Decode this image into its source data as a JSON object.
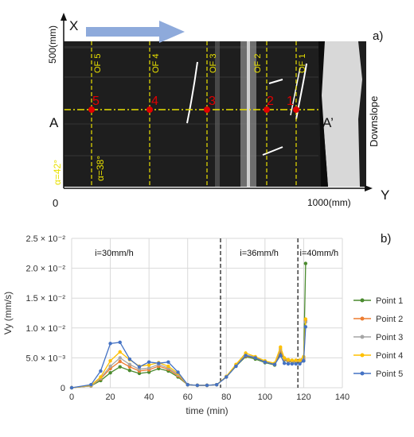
{
  "panel_a": {
    "label": "a)",
    "x_axis_label": "X",
    "y_axis_label": "Y",
    "x_extent_label": "500(mm)",
    "y_extent_label": "1000(mm)",
    "origin_label": "0",
    "downslope_label": "Downslope",
    "section_start": "A",
    "section_end": "A’",
    "angle_left": "α=42°",
    "angle_right": "α=38°",
    "flow_lines": [
      "OF 5",
      "OF 4",
      "OF 3",
      "OF 2",
      "OF 1"
    ],
    "points": [
      "5",
      "4",
      "3",
      "2",
      "1"
    ]
  },
  "chart_data": {
    "type": "line",
    "panel_label": "b)",
    "xlabel": "time (min)",
    "ylabel": "Vy (mm/s)",
    "xlim": [
      0,
      140
    ],
    "ylim": [
      0,
      0.025
    ],
    "x_ticks": [
      "0",
      "20",
      "40",
      "60",
      "80",
      "100",
      "120",
      "140"
    ],
    "y_ticks": [
      {
        "value": 0,
        "label": "0"
      },
      {
        "value": 0.005,
        "label": "5.0 × 10⁻³"
      },
      {
        "value": 0.01,
        "label": "1.0 × 10⁻²"
      },
      {
        "value": 0.015,
        "label": "1.5 × 10⁻²"
      },
      {
        "value": 0.02,
        "label": "2.0 × 10⁻²"
      },
      {
        "value": 0.025,
        "label": "2.5 × 10⁻²"
      }
    ],
    "grid": true,
    "legend_position": "right",
    "regions": [
      {
        "label": "i=30mm/h",
        "x_label": 22
      },
      {
        "label": "i=36mm/h",
        "x_label": 97
      },
      {
        "label": "i=40mm/h",
        "x_label": 128
      }
    ],
    "dividers": [
      77,
      117
    ],
    "x": [
      0,
      10,
      15,
      20,
      25,
      30,
      35,
      40,
      45,
      50,
      55,
      60,
      65,
      70,
      75,
      80,
      85,
      90,
      95,
      100,
      105,
      108,
      110,
      112,
      114,
      116,
      118,
      120,
      121
    ],
    "series": [
      {
        "name": "Point 1",
        "color": "#4a8a2e",
        "values": [
          0,
          0.0003,
          0.0012,
          0.0025,
          0.0035,
          0.0029,
          0.0024,
          0.0026,
          0.0032,
          0.0028,
          0.0018,
          0.0005,
          0.0004,
          0.0004,
          0.0005,
          0.0018,
          0.0036,
          0.0052,
          0.0048,
          0.0042,
          0.0038,
          0.0058,
          0.0047,
          0.0044,
          0.0043,
          0.0043,
          0.0043,
          0.0045,
          0.0208
        ]
      },
      {
        "name": "Point 2",
        "color": "#ed7d31",
        "values": [
          0,
          0.0003,
          0.0015,
          0.0032,
          0.0044,
          0.0035,
          0.0028,
          0.003,
          0.0036,
          0.0031,
          0.002,
          0.0005,
          0.0004,
          0.0004,
          0.0005,
          0.0018,
          0.0037,
          0.0053,
          0.005,
          0.0043,
          0.0039,
          0.0062,
          0.0048,
          0.0045,
          0.0044,
          0.0044,
          0.0044,
          0.0048,
          0.0112
        ]
      },
      {
        "name": "Point 3",
        "color": "#a5a5a5",
        "values": [
          0,
          0.0003,
          0.0016,
          0.0036,
          0.005,
          0.0039,
          0.0031,
          0.0033,
          0.0039,
          0.0033,
          0.0022,
          0.0005,
          0.0004,
          0.0004,
          0.0005,
          0.0018,
          0.0038,
          0.0055,
          0.0051,
          0.0044,
          0.004,
          0.0065,
          0.0049,
          0.0046,
          0.0045,
          0.0045,
          0.0045,
          0.005,
          0.011
        ]
      },
      {
        "name": "Point 4",
        "color": "#ffc000",
        "values": [
          0,
          0.0004,
          0.0018,
          0.0045,
          0.006,
          0.0047,
          0.0036,
          0.0038,
          0.0042,
          0.0036,
          0.0024,
          0.0005,
          0.0004,
          0.0004,
          0.0005,
          0.0019,
          0.0039,
          0.0058,
          0.0052,
          0.0045,
          0.0041,
          0.0068,
          0.005,
          0.0047,
          0.0046,
          0.0046,
          0.0046,
          0.0052,
          0.0115
        ]
      },
      {
        "name": "Point 5",
        "color": "#4472c4",
        "values": [
          0,
          0.0005,
          0.0028,
          0.0074,
          0.0076,
          0.0048,
          0.0035,
          0.0043,
          0.0041,
          0.0043,
          0.0026,
          0.0005,
          0.0004,
          0.0004,
          0.0005,
          0.0018,
          0.0036,
          0.0054,
          0.005,
          0.0043,
          0.0039,
          0.0054,
          0.0041,
          0.004,
          0.004,
          0.004,
          0.004,
          0.0045,
          0.0102
        ]
      }
    ]
  }
}
